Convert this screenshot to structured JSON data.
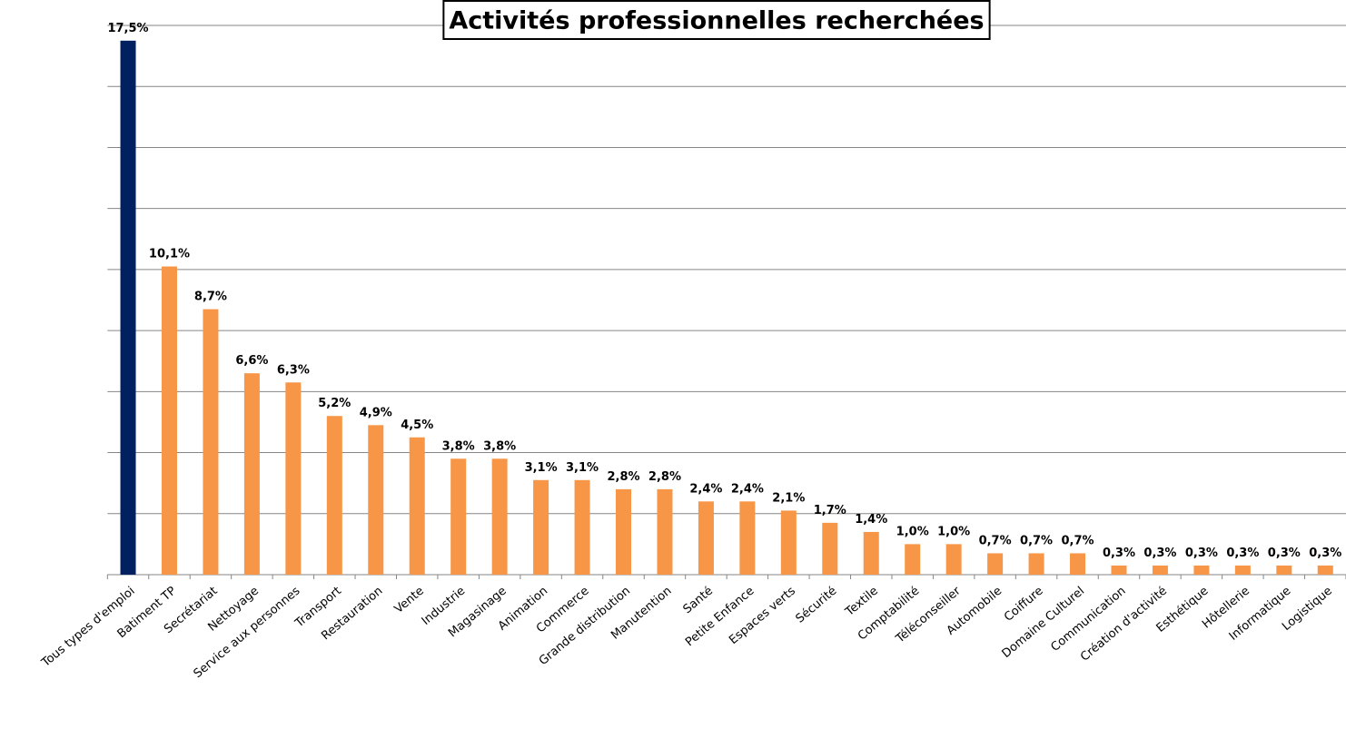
{
  "chart_data": {
    "type": "bar",
    "title": "Activités professionnelles recherchées",
    "categories": [
      "Tous types d'emploi",
      "Batiment TP",
      "Secrétariat",
      "Nettoyage",
      "Service aux personnes",
      "Transport",
      "Restauration",
      "Vente",
      "Industrie",
      "Magasinage",
      "Animation",
      "Commerce",
      "Grande distribution",
      "Manutention",
      "Santé",
      "Petite Enfance",
      "Espaces verts",
      "Sécurité",
      "Textile",
      "Comptabilité",
      "Téléconseiller",
      "Automobile",
      "Coiffure",
      "Domaine Culturel",
      "Communication",
      "Création d'activité",
      "Esthétique",
      "Hôtellerie",
      "Informatique",
      "Logistique"
    ],
    "values": [
      17.5,
      10.1,
      8.7,
      6.6,
      6.3,
      5.2,
      4.9,
      4.5,
      3.8,
      3.8,
      3.1,
      3.1,
      2.8,
      2.8,
      2.4,
      2.4,
      2.1,
      1.7,
      1.4,
      1.0,
      1.0,
      0.7,
      0.7,
      0.7,
      0.3,
      0.3,
      0.3,
      0.3,
      0.3,
      0.3
    ],
    "value_labels": [
      "17,5%",
      "10,1%",
      "8,7%",
      "6,6%",
      "6,3%",
      "5,2%",
      "4,9%",
      "4,5%",
      "3,8%",
      "3,8%",
      "3,1%",
      "3,1%",
      "2,8%",
      "2,8%",
      "2,4%",
      "2,4%",
      "2,1%",
      "1,7%",
      "1,4%",
      "1,0%",
      "1,0%",
      "0,7%",
      "0,7%",
      "0,7%",
      "0,3%",
      "0,3%",
      "0,3%",
      "0,3%",
      "0,3%",
      "0,3%"
    ],
    "colors": [
      "#002060",
      "#f79646",
      "#f79646",
      "#f79646",
      "#f79646",
      "#f79646",
      "#f79646",
      "#f79646",
      "#f79646",
      "#f79646",
      "#f79646",
      "#f79646",
      "#f79646",
      "#f79646",
      "#f79646",
      "#f79646",
      "#f79646",
      "#f79646",
      "#f79646",
      "#f79646",
      "#f79646",
      "#f79646",
      "#f79646",
      "#f79646",
      "#f79646",
      "#f79646",
      "#f79646",
      "#f79646",
      "#f79646",
      "#f79646"
    ],
    "ylim": [
      0,
      18
    ],
    "yticks": [
      0,
      2,
      4,
      6,
      8,
      10,
      12,
      14,
      16,
      18
    ],
    "grid": true
  }
}
